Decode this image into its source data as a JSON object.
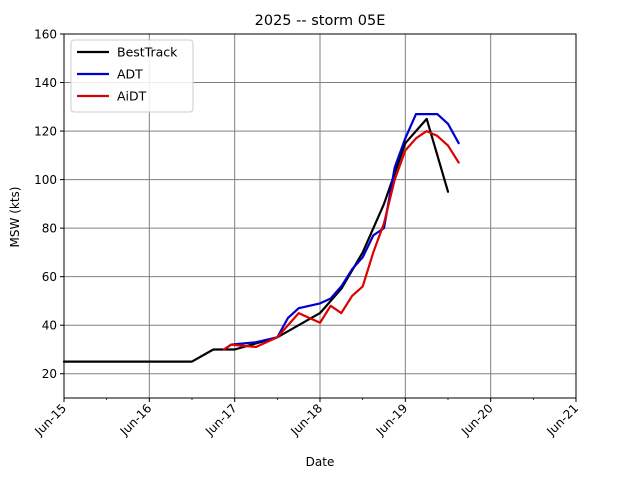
{
  "chart_data": {
    "type": "line",
    "title": "2025 -- storm 05E",
    "xlabel": "Date",
    "ylabel": "MSW (kts)",
    "x_ticks": [
      "Jun-15",
      "Jun-16",
      "Jun-17",
      "Jun-18",
      "Jun-19",
      "Jun-20",
      "Jun-21"
    ],
    "xlim": [
      "Jun-15",
      "Jun-21"
    ],
    "y_ticks": [
      20,
      40,
      60,
      80,
      100,
      120,
      140,
      160
    ],
    "ylim": [
      10,
      160
    ],
    "grid": true,
    "legend": "top-left",
    "series": [
      {
        "name": "BestTrack",
        "color": "#000000",
        "points": [
          [
            "Jun-15 00:00",
            25
          ],
          [
            "Jun-16 12:00",
            25
          ],
          [
            "Jun-16 18:00",
            30
          ],
          [
            "Jun-17 00:00",
            30
          ],
          [
            "Jun-17 12:00",
            35
          ],
          [
            "Jun-18 00:00",
            45
          ],
          [
            "Jun-18 06:00",
            55
          ],
          [
            "Jun-18 12:00",
            70
          ],
          [
            "Jun-18 18:00",
            90
          ],
          [
            "Jun-19 00:00",
            115
          ],
          [
            "Jun-19 06:00",
            125
          ],
          [
            "Jun-19 12:00",
            95
          ]
        ]
      },
      {
        "name": "ADT",
        "color": "#0000cc",
        "points": [
          [
            "Jun-16 21:00",
            30
          ],
          [
            "Jun-16 23:00",
            32
          ],
          [
            "Jun-17 06:00",
            33
          ],
          [
            "Jun-17 12:00",
            35
          ],
          [
            "Jun-17 15:00",
            43
          ],
          [
            "Jun-17 18:00",
            47
          ],
          [
            "Jun-18 00:00",
            49
          ],
          [
            "Jun-18 03:00",
            51
          ],
          [
            "Jun-18 06:00",
            56
          ],
          [
            "Jun-18 09:00",
            63
          ],
          [
            "Jun-18 12:00",
            68
          ],
          [
            "Jun-18 15:00",
            77
          ],
          [
            "Jun-18 18:00",
            80
          ],
          [
            "Jun-18 21:00",
            105
          ],
          [
            "Jun-19 00:00",
            117
          ],
          [
            "Jun-19 03:00",
            127
          ],
          [
            "Jun-19 09:00",
            127
          ],
          [
            "Jun-19 12:00",
            123
          ],
          [
            "Jun-19 15:00",
            115
          ]
        ]
      },
      {
        "name": "AiDT",
        "color": "#dd0000",
        "points": [
          [
            "Jun-16 21:00",
            30
          ],
          [
            "Jun-16 23:00",
            32
          ],
          [
            "Jun-17 06:00",
            31
          ],
          [
            "Jun-17 12:00",
            35
          ],
          [
            "Jun-17 18:00",
            45
          ],
          [
            "Jun-18 00:00",
            41
          ],
          [
            "Jun-18 03:00",
            48
          ],
          [
            "Jun-18 06:00",
            45
          ],
          [
            "Jun-18 09:00",
            52
          ],
          [
            "Jun-18 12:00",
            56
          ],
          [
            "Jun-18 15:00",
            70
          ],
          [
            "Jun-18 18:00",
            82
          ],
          [
            "Jun-18 21:00",
            100
          ],
          [
            "Jun-19 00:00",
            112
          ],
          [
            "Jun-19 03:00",
            117
          ],
          [
            "Jun-19 06:00",
            120
          ],
          [
            "Jun-19 09:00",
            118
          ],
          [
            "Jun-19 12:00",
            114
          ],
          [
            "Jun-19 15:00",
            107
          ]
        ]
      }
    ]
  }
}
